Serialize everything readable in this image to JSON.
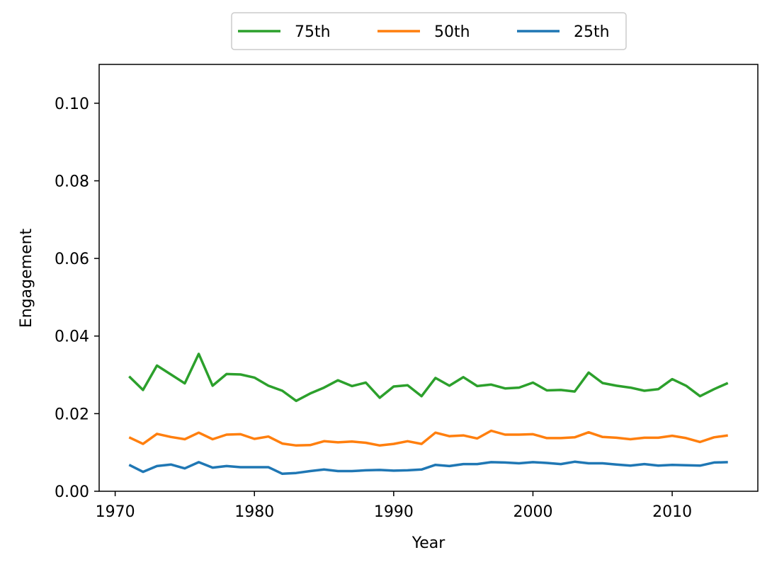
{
  "chart_data": {
    "type": "line",
    "title": "",
    "xlabel": "Year",
    "ylabel": "Engagement",
    "xlim": [
      1968.85,
      2016.15
    ],
    "ylim": [
      0.0,
      0.11
    ],
    "x_ticks": [
      1970,
      1980,
      1990,
      2000,
      2010
    ],
    "x_tick_labels": [
      "1970",
      "1980",
      "1990",
      "2000",
      "2010"
    ],
    "y_ticks": [
      0.0,
      0.02,
      0.04,
      0.06,
      0.08,
      0.1
    ],
    "y_tick_labels": [
      "0.00",
      "0.02",
      "0.04",
      "0.06",
      "0.08",
      "0.10"
    ],
    "grid": false,
    "legend_position": "top-center, above plot",
    "x": [
      1971,
      1972,
      1973,
      1974,
      1975,
      1976,
      1977,
      1978,
      1979,
      1980,
      1981,
      1982,
      1983,
      1984,
      1985,
      1986,
      1987,
      1988,
      1989,
      1990,
      1991,
      1992,
      1993,
      1994,
      1995,
      1996,
      1997,
      1998,
      1999,
      2000,
      2001,
      2002,
      2003,
      2004,
      2005,
      2006,
      2007,
      2008,
      2009,
      2010,
      2011,
      2012,
      2013,
      2014
    ],
    "series": [
      {
        "name": "75th",
        "color": "#2ca02c",
        "values": [
          0.0296,
          0.0261,
          0.0324,
          0.0301,
          0.0278,
          0.0354,
          0.0272,
          0.0302,
          0.0301,
          0.0293,
          0.0272,
          0.0259,
          0.0233,
          0.0252,
          0.0267,
          0.0286,
          0.0271,
          0.028,
          0.0241,
          0.027,
          0.0273,
          0.0245,
          0.0292,
          0.0272,
          0.0294,
          0.0271,
          0.0275,
          0.0265,
          0.0267,
          0.028,
          0.026,
          0.0261,
          0.0257,
          0.0306,
          0.0279,
          0.0272,
          0.0267,
          0.0259,
          0.0263,
          0.0289,
          0.0272,
          0.0245,
          0.0263,
          0.0279
        ]
      },
      {
        "name": "50th",
        "color": "#ff7f0e",
        "values": [
          0.0139,
          0.0122,
          0.0148,
          0.014,
          0.0134,
          0.0151,
          0.0134,
          0.0146,
          0.0147,
          0.0135,
          0.0141,
          0.0123,
          0.0118,
          0.0119,
          0.0129,
          0.0126,
          0.0128,
          0.0125,
          0.0118,
          0.0122,
          0.0129,
          0.0122,
          0.0151,
          0.0142,
          0.0144,
          0.0136,
          0.0156,
          0.0146,
          0.0146,
          0.0147,
          0.0137,
          0.0137,
          0.0139,
          0.0152,
          0.014,
          0.0138,
          0.0134,
          0.0138,
          0.0138,
          0.0143,
          0.0137,
          0.0127,
          0.0139,
          0.0144
        ]
      },
      {
        "name": "25th",
        "color": "#1f77b4",
        "values": [
          0.0068,
          0.005,
          0.0065,
          0.0069,
          0.0059,
          0.0075,
          0.0061,
          0.0065,
          0.0062,
          0.0062,
          0.0062,
          0.0045,
          0.0047,
          0.0052,
          0.0056,
          0.0052,
          0.0052,
          0.0054,
          0.0055,
          0.0053,
          0.0054,
          0.0056,
          0.0068,
          0.0065,
          0.007,
          0.007,
          0.0075,
          0.0074,
          0.0072,
          0.0075,
          0.0073,
          0.007,
          0.0076,
          0.0072,
          0.0072,
          0.0069,
          0.0066,
          0.007,
          0.0066,
          0.0068,
          0.0067,
          0.0066,
          0.0074,
          0.0075
        ]
      }
    ]
  }
}
